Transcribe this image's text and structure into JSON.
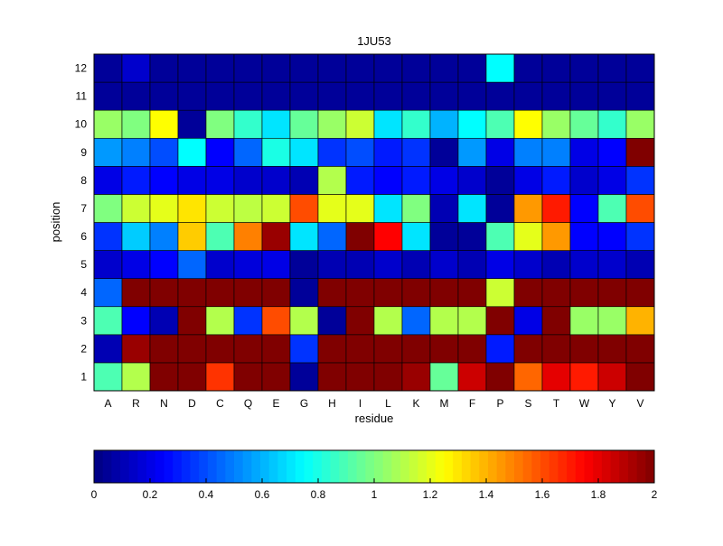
{
  "chart_data": {
    "type": "heatmap",
    "title": "1JU53",
    "xlabel": "residue",
    "ylabel": "position",
    "x_categories": [
      "A",
      "R",
      "N",
      "D",
      "C",
      "Q",
      "E",
      "G",
      "H",
      "I",
      "L",
      "K",
      "M",
      "F",
      "P",
      "S",
      "T",
      "W",
      "Y",
      "V"
    ],
    "y_categories": [
      "1",
      "2",
      "3",
      "4",
      "5",
      "6",
      "7",
      "8",
      "9",
      "10",
      "11",
      "12"
    ],
    "colorbar": {
      "min": 0,
      "max": 2,
      "ticks": [
        "0",
        "0.2",
        "0.4",
        "0.6",
        "0.8",
        "1",
        "1.2",
        "1.4",
        "1.6",
        "1.8",
        "2"
      ],
      "colormap": "jet"
    },
    "values": [
      [
        0.9,
        1.1,
        2.0,
        2.0,
        1.65,
        2.0,
        2.0,
        0.05,
        2.0,
        2.0,
        2.0,
        1.95,
        0.95,
        1.85,
        2.0,
        1.55,
        1.8,
        1.7,
        1.85,
        2.0
      ],
      [
        0.1,
        1.95,
        2.0,
        2.0,
        2.0,
        2.0,
        2.0,
        0.35,
        2.0,
        2.0,
        2.0,
        2.0,
        2.0,
        2.0,
        0.3,
        2.0,
        2.0,
        2.0,
        2.0,
        2.0
      ],
      [
        0.9,
        0.25,
        0.1,
        2.0,
        1.1,
        0.35,
        1.6,
        1.1,
        0.05,
        2.0,
        1.1,
        0.45,
        1.1,
        1.1,
        2.0,
        0.2,
        2.0,
        1.05,
        1.05,
        1.4
      ],
      [
        0.45,
        2.0,
        2.0,
        2.0,
        2.0,
        2.0,
        2.0,
        0.05,
        2.0,
        2.0,
        2.0,
        2.0,
        2.0,
        2.0,
        1.15,
        2.0,
        2.0,
        2.0,
        2.0,
        2.0
      ],
      [
        0.15,
        0.2,
        0.25,
        0.45,
        0.15,
        0.18,
        0.2,
        0.05,
        0.1,
        0.1,
        0.15,
        0.1,
        0.15,
        0.1,
        0.2,
        0.15,
        0.1,
        0.15,
        0.15,
        0.1
      ],
      [
        0.35,
        0.65,
        0.5,
        1.35,
        0.9,
        1.5,
        1.95,
        0.7,
        0.45,
        2.0,
        1.75,
        0.7,
        0.05,
        0.05,
        0.9,
        1.2,
        1.45,
        0.25,
        0.25,
        0.35
      ],
      [
        1.0,
        1.15,
        1.2,
        1.3,
        1.15,
        1.12,
        1.15,
        1.6,
        1.2,
        1.2,
        0.7,
        1.0,
        0.1,
        0.7,
        0.05,
        1.45,
        1.7,
        0.25,
        0.9,
        1.6
      ],
      [
        0.2,
        0.3,
        0.25,
        0.2,
        0.2,
        0.15,
        0.15,
        0.1,
        1.1,
        0.3,
        0.25,
        0.3,
        0.2,
        0.15,
        0.05,
        0.2,
        0.3,
        0.15,
        0.2,
        0.35
      ],
      [
        0.55,
        0.5,
        0.4,
        0.75,
        0.25,
        0.45,
        0.8,
        0.7,
        0.35,
        0.4,
        0.3,
        0.35,
        0.05,
        0.55,
        0.2,
        0.5,
        0.5,
        0.2,
        0.25,
        2.0
      ],
      [
        1.05,
        1.0,
        1.25,
        0.05,
        1.0,
        0.85,
        0.7,
        0.95,
        1.05,
        1.15,
        0.7,
        0.85,
        0.6,
        0.75,
        0.9,
        1.25,
        1.05,
        0.95,
        0.85,
        1.05
      ],
      [
        0.05,
        0.05,
        0.05,
        0.05,
        0.05,
        0.05,
        0.05,
        0.05,
        0.05,
        0.05,
        0.05,
        0.05,
        0.05,
        0.05,
        0.05,
        0.05,
        0.05,
        0.05,
        0.05,
        0.05
      ],
      [
        0.05,
        0.15,
        0.05,
        0.05,
        0.05,
        0.05,
        0.05,
        0.05,
        0.05,
        0.05,
        0.05,
        0.05,
        0.05,
        0.05,
        0.75,
        0.05,
        0.05,
        0.05,
        0.05,
        0.05
      ]
    ]
  }
}
